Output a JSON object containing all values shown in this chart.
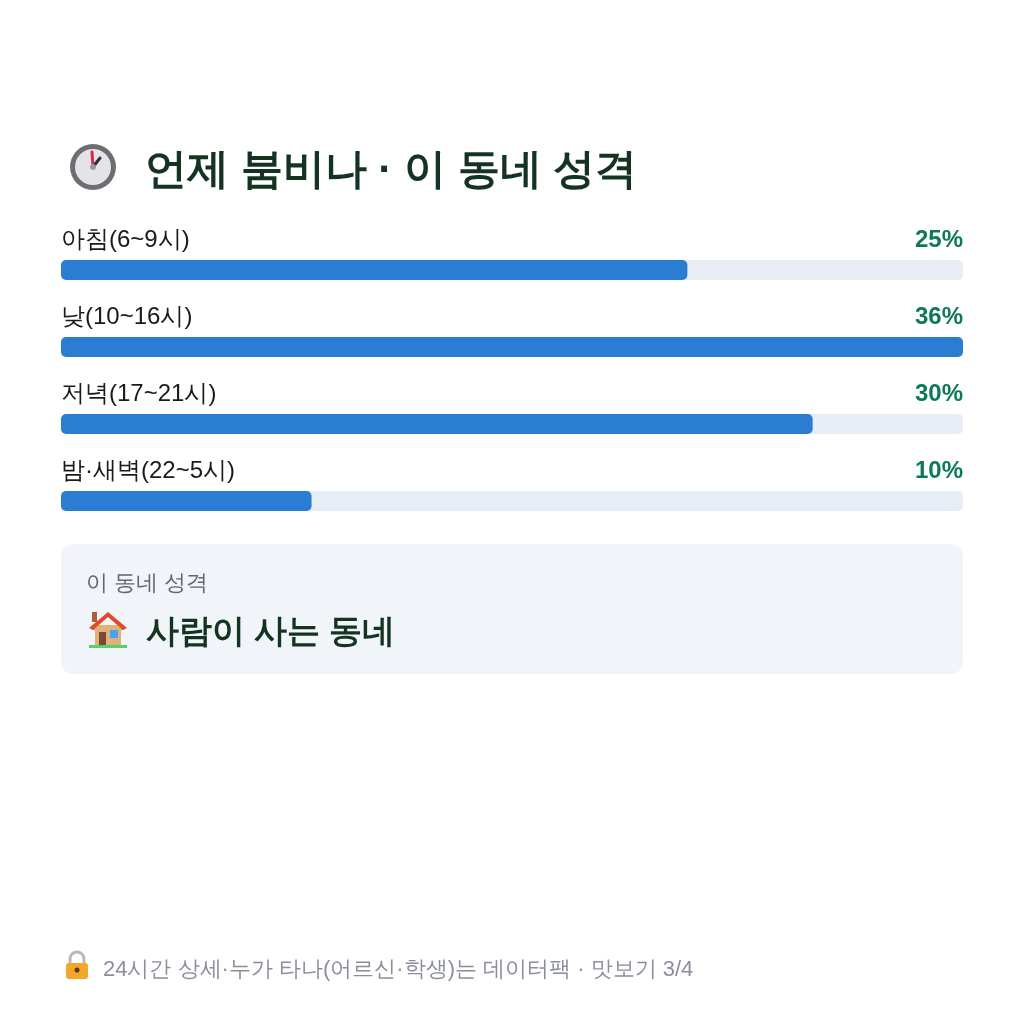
{
  "chart_data": {
    "type": "bar",
    "orientation": "horizontal",
    "title": "언제 붐비나 · 이 동네 성격",
    "categories": [
      "아침(6~9시)",
      "낮(10~16시)",
      "저녁(17~21시)",
      "밤·새벽(22~5시)"
    ],
    "values": [
      25,
      36,
      30,
      10
    ],
    "value_labels": [
      "25%",
      "36%",
      "30%",
      "10%"
    ],
    "color": "#2b7cd3",
    "annotations": [
      "이 동네 성격",
      "사람이 사는 동네",
      "24시간 상세·누가 타나(어르신·학생)는 데이터팩 · 맛보기 3/4"
    ]
  }
}
